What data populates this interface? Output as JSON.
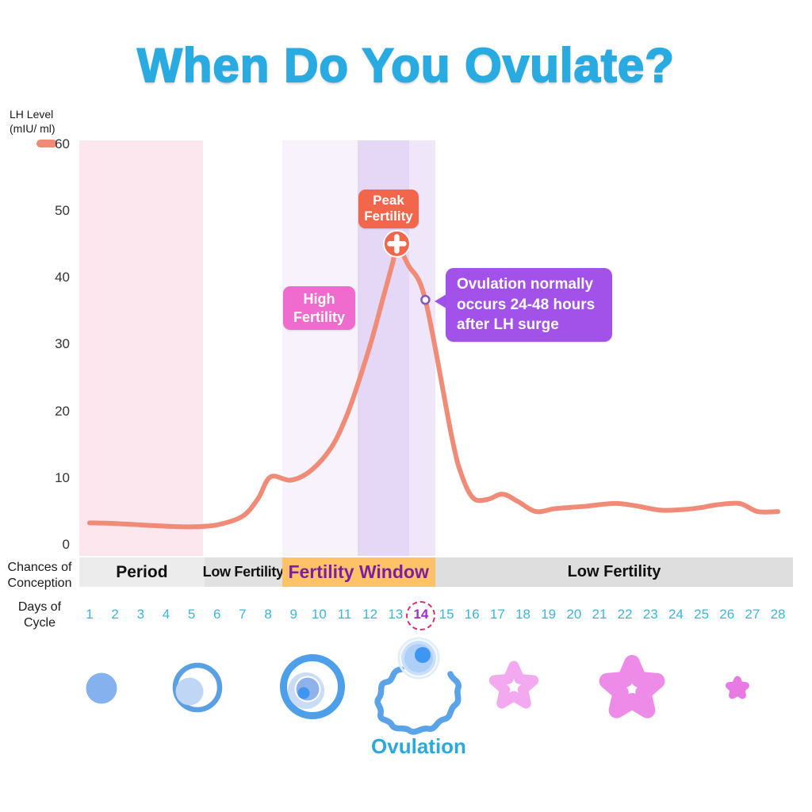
{
  "title": "When Do You Ovulate?",
  "y_axis": {
    "label": "LH Level\n(mIU/ ml)",
    "legend_icon": "lh-line-sample",
    "legend_color": "#EF8B76"
  },
  "chart_data": {
    "type": "line",
    "title": "When Do You Ovulate?",
    "xlabel": "Days of Cycle",
    "ylabel": "LH Level (mIU/ ml)",
    "grid": false,
    "ylim": [
      0,
      62
    ],
    "yticks": [
      60,
      50,
      40,
      30,
      20,
      10,
      0
    ],
    "x": [
      1,
      2,
      3,
      4,
      5,
      6,
      7,
      8,
      9,
      10,
      11,
      12,
      13,
      14,
      15,
      16,
      17,
      18,
      19,
      20,
      21,
      22,
      23,
      24,
      25,
      26,
      27,
      28
    ],
    "series": [
      {
        "name": "LH Level (mIU/ml)",
        "color": "#EF8B76",
        "values": [
          3.4,
          3.3,
          3.1,
          2.9,
          2.8,
          3.1,
          4.4,
          10,
          10.3,
          13.7,
          19.4,
          30,
          45,
          37,
          19,
          7.2,
          7.6,
          5.8,
          5.6,
          5.9,
          6.2,
          6.1,
          5.5,
          5.4,
          5.7,
          6.2,
          5.2,
          5.1
        ]
      }
    ],
    "curve_points": [
      [
        1,
        3.4
      ],
      [
        2,
        3.3
      ],
      [
        3,
        3.1
      ],
      [
        4,
        2.9
      ],
      [
        5,
        2.8
      ],
      [
        6,
        3.1
      ],
      [
        7,
        4.4
      ],
      [
        7.6,
        7.0
      ],
      [
        8.1,
        10.3
      ],
      [
        8.9,
        9.8
      ],
      [
        9.7,
        11.3
      ],
      [
        10.5,
        14.8
      ],
      [
        11.1,
        19.6
      ],
      [
        11.6,
        25.1
      ],
      [
        12.05,
        30.6
      ],
      [
        12.5,
        36.9
      ],
      [
        12.9,
        42.5
      ],
      [
        13.05,
        45.0
      ],
      [
        13.5,
        42.0
      ],
      [
        14.17,
        36.8
      ],
      [
        15.2,
        16.4
      ],
      [
        15.6,
        10.5
      ],
      [
        16.05,
        7.1
      ],
      [
        16.6,
        6.9
      ],
      [
        17.2,
        7.7
      ],
      [
        17.8,
        6.6
      ],
      [
        18.5,
        5.1
      ],
      [
        19.2,
        5.5
      ],
      [
        19.8,
        5.7
      ],
      [
        20.5,
        5.9
      ],
      [
        21.2,
        6.2
      ],
      [
        21.75,
        6.3
      ],
      [
        22.5,
        5.9
      ],
      [
        23.4,
        5.3
      ],
      [
        24.3,
        5.4
      ],
      [
        25.0,
        5.7
      ],
      [
        25.6,
        6.1
      ],
      [
        26.5,
        6.3
      ],
      [
        27.2,
        5.1
      ],
      [
        28,
        5.1
      ]
    ],
    "regions": [
      {
        "name": "period-band",
        "day_start": 0.6,
        "day_end": 5.45,
        "color": "#FBE7ED"
      },
      {
        "name": "fertile-light-band",
        "day_start": 8.55,
        "day_end": 11.5,
        "color": "#F7F2FC"
      },
      {
        "name": "fertile-dark-band",
        "day_start": 11.5,
        "day_end": 13.55,
        "color": "#E5D8F6"
      },
      {
        "name": "fertile-mid-band",
        "day_start": 13.55,
        "day_end": 14.55,
        "color": "#EFE6FA"
      }
    ],
    "annotations": {
      "peak_label": {
        "text": "Peak\nFertility",
        "color": "#F2674C"
      },
      "high_label": {
        "text": "High\nFertility",
        "color": "#EF6CCE"
      },
      "callout": {
        "text": "Ovulation normally\noccurs 24-48 hours\nafter LH surge",
        "color": "#A251E9"
      },
      "peak_marker": {
        "day": 13.05,
        "value": 45.2,
        "icon": "plus-cross-icon",
        "color": "#F2674C"
      },
      "ovulation_marker": {
        "day": 14.17,
        "value": 36.8
      }
    }
  },
  "conception_bar": {
    "row_label": "Chances of\nConception",
    "segments": [
      {
        "label": "Period",
        "day_start": 0.6,
        "day_end": 5.5,
        "bg": "#EDECEC",
        "text_color": "#111111"
      },
      {
        "label": "Low Fertility",
        "day_start": 5.5,
        "day_end": 8.55,
        "bg": "#E2E1E1",
        "text_color": "#111111"
      },
      {
        "label": "Fertility Window",
        "day_start": 8.55,
        "day_end": 14.55,
        "bg": "#FFC266",
        "text_color": "#7C1FA0"
      },
      {
        "label": "Low Fertility",
        "day_start": 14.55,
        "day_end": 28.6,
        "bg": "#DEDEDE",
        "text_color": "#111111"
      }
    ]
  },
  "days_row": {
    "row_label": "Days of\nCycle",
    "days": [
      1,
      2,
      3,
      4,
      5,
      6,
      7,
      8,
      9,
      10,
      11,
      12,
      13,
      14,
      15,
      16,
      17,
      18,
      19,
      20,
      21,
      22,
      23,
      24,
      25,
      26,
      27,
      28
    ],
    "highlighted_day": 14,
    "number_color": "#3FB4DB",
    "highlight_color": "#9B30C2",
    "highlight_ring_color": "#D6336C"
  },
  "lifecycle": {
    "stage_icons": [
      "early-follicle-icon",
      "growing-follicle-icon",
      "mature-follicle-icon",
      "ovulation-rupture-icon",
      "corpus-luteum-forming-icon",
      "corpus-luteum-icon",
      "corpus-albicans-icon"
    ],
    "ovulation_label": "Ovulation"
  },
  "colors": {
    "title": "#29ABE2",
    "curve": "#EF8B76",
    "peak_box": "#F2674C",
    "high_box": "#EF6CCE",
    "callout_box": "#A251E9",
    "fertility_window_bg": "#FFC266",
    "fertility_window_text": "#7C1FA0",
    "day_numbers": "#3FB4DB",
    "ovulation_label": "#2BA9DC"
  }
}
